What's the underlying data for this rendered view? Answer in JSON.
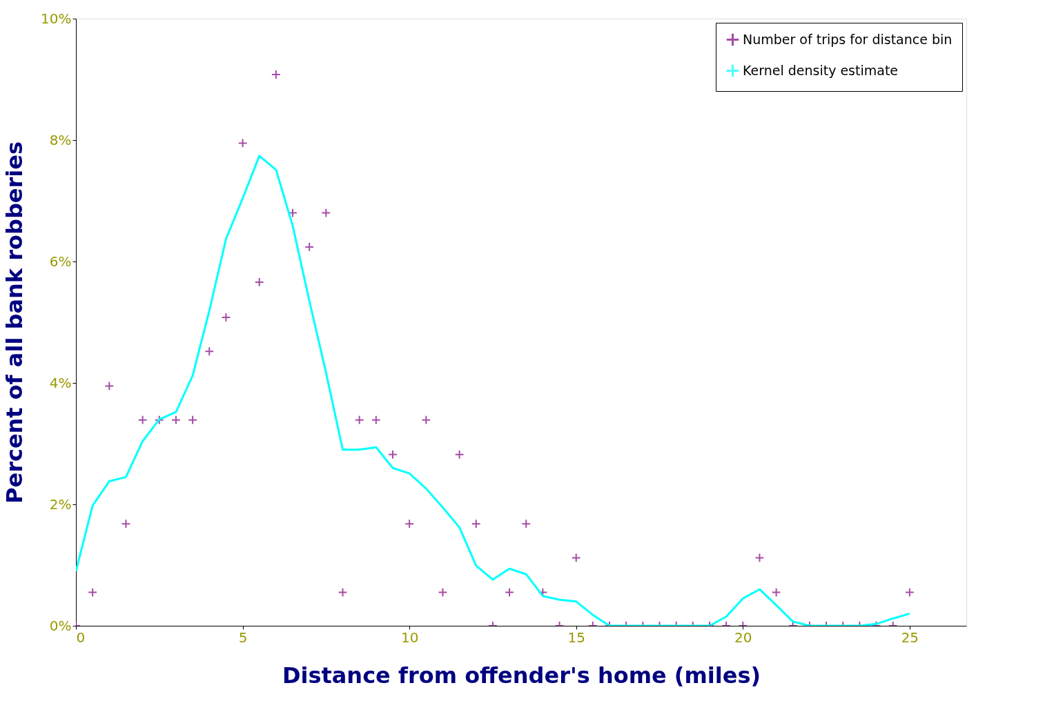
{
  "chart_data": {
    "type": "scatter",
    "xlabel": "Distance from offender's home (miles)",
    "ylabel": "Percent of all bank robberies",
    "xlim": [
      0,
      26.7
    ],
    "xticks": [
      0,
      5,
      10,
      15,
      20,
      25
    ],
    "ylim": [
      0,
      10
    ],
    "yticks": [
      {
        "value": 0,
        "label": "0%"
      },
      {
        "value": 2,
        "label": "2%"
      },
      {
        "value": 4,
        "label": "4%"
      },
      {
        "value": 6,
        "label": "6%"
      },
      {
        "value": 8,
        "label": "8%"
      },
      {
        "value": 10,
        "label": "10%"
      }
    ],
    "grid": false,
    "legend": "top right",
    "series": [
      {
        "name": "Number of trips for distance bin",
        "type": "scatter",
        "marker": "cross",
        "color": "#800080",
        "x": [
          0,
          0.5,
          1,
          1.5,
          2,
          2.5,
          3,
          3.5,
          4,
          4.5,
          5,
          5.5,
          6,
          6.5,
          7,
          7.5,
          8,
          8.5,
          9,
          9.5,
          10,
          10.5,
          11,
          11.5,
          12,
          12.5,
          13,
          13.5,
          14,
          14.5,
          15,
          15.5,
          16,
          16.5,
          17,
          17.5,
          18,
          18.5,
          19,
          19.5,
          20,
          20.5,
          21,
          21.5,
          22,
          22.5,
          23,
          23.5,
          24,
          24.5,
          25
        ],
        "values": [
          0,
          0.55,
          3.95,
          1.68,
          3.39,
          3.39,
          3.39,
          3.39,
          4.52,
          5.08,
          7.95,
          5.66,
          9.08,
          6.8,
          6.24,
          6.8,
          0.55,
          3.39,
          3.39,
          2.82,
          1.68,
          3.39,
          0.55,
          2.82,
          1.68,
          0,
          0.55,
          1.68,
          0.55,
          0,
          1.12,
          0,
          0,
          0,
          0,
          0,
          0,
          0,
          0,
          0,
          0,
          1.12,
          0.55,
          0,
          0,
          0,
          0,
          0,
          0,
          0,
          0.55
        ]
      },
      {
        "name": "Kernel density estimate",
        "type": "line",
        "marker": "none",
        "line_style": "solid",
        "color": "#00ffff",
        "x": [
          0,
          0.5,
          1,
          1.5,
          2,
          2.5,
          3,
          3.5,
          4,
          4.5,
          5,
          5.5,
          6,
          6.5,
          7,
          7.5,
          8,
          8.5,
          9,
          9.5,
          10,
          10.5,
          11,
          11.5,
          12,
          12.5,
          13,
          13.5,
          14,
          14.5,
          15,
          15.5,
          16,
          19,
          19.5,
          20,
          20.5,
          21,
          21.5,
          22,
          23.5,
          24,
          24.5,
          25
        ],
        "values": [
          0.9,
          1.98,
          2.38,
          2.45,
          3.04,
          3.4,
          3.52,
          4.12,
          5.19,
          6.37,
          7.04,
          7.74,
          7.51,
          6.59,
          5.35,
          4.17,
          2.9,
          2.9,
          2.94,
          2.6,
          2.51,
          2.26,
          1.95,
          1.62,
          0.99,
          0.76,
          0.94,
          0.85,
          0.49,
          0.43,
          0.4,
          0.18,
          0,
          0,
          0.15,
          0.45,
          0.6,
          0.34,
          0.07,
          0,
          0,
          0.03,
          0.12,
          0.2
        ]
      }
    ]
  }
}
